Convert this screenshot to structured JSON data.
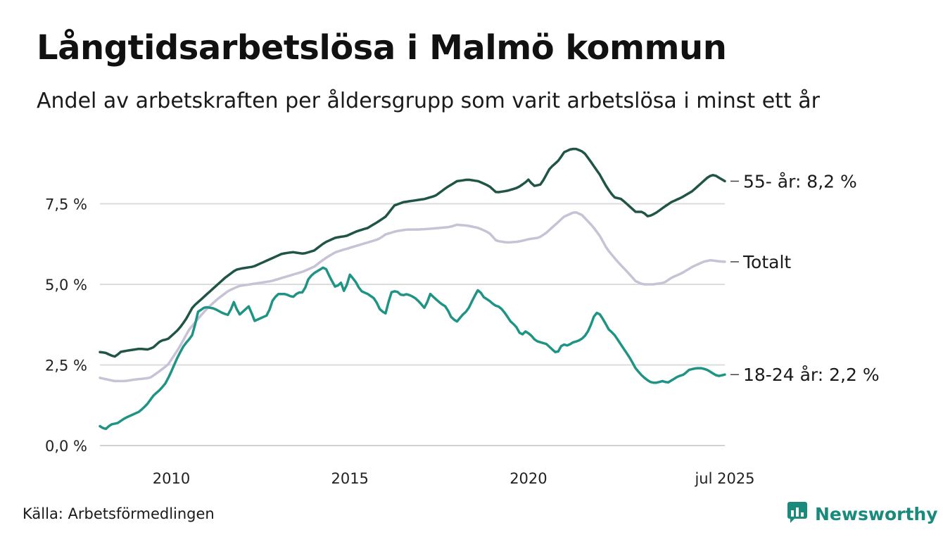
{
  "title": "Långtidsarbetslösa i Malmö kommun",
  "subtitle": "Andel av arbetskraften per åldersgrupp som varit arbetslösa i minst ett år",
  "source": "Källa: Arbetsförmedlingen",
  "brand": {
    "name": "Newsworthy",
    "icon": "newsworthy-logo-icon",
    "color": "#1a8a7d"
  },
  "chart_data": {
    "type": "line",
    "x_start": 2008.0,
    "x_step_months": 1,
    "xlim": [
      2008.0,
      2025.5
    ],
    "ylim": [
      0,
      9.3
    ],
    "y_ticks": [
      {
        "value": 0,
        "label": "0,0 %"
      },
      {
        "value": 2.5,
        "label": "2,5 %"
      },
      {
        "value": 5,
        "label": "5,0 %"
      },
      {
        "value": 7.5,
        "label": "7,5 %"
      }
    ],
    "x_ticks": [
      {
        "value": 2010,
        "label": "2010"
      },
      {
        "value": 2015,
        "label": "2015"
      },
      {
        "value": 2020,
        "label": "2020"
      },
      {
        "value": 2025.5,
        "label": "jul 2025"
      }
    ],
    "grid": true,
    "legend": "direct-labels-right",
    "series": [
      {
        "name": "55- år",
        "end_label": "55- år: 8,2 %",
        "color": "#1f5446",
        "anchors": [
          [
            2008.0,
            2.9
          ],
          [
            2008.15,
            2.88
          ],
          [
            2008.3,
            2.8
          ],
          [
            2008.45,
            2.75
          ],
          [
            2008.55,
            2.9
          ],
          [
            2008.8,
            2.95
          ],
          [
            2009.1,
            3.0
          ],
          [
            2009.35,
            2.98
          ],
          [
            2009.5,
            3.05
          ],
          [
            2009.7,
            3.25
          ],
          [
            2009.9,
            3.3
          ],
          [
            2010.2,
            3.6
          ],
          [
            2010.4,
            3.9
          ],
          [
            2010.6,
            4.3
          ],
          [
            2010.9,
            4.6
          ],
          [
            2011.2,
            4.9
          ],
          [
            2011.5,
            5.2
          ],
          [
            2011.8,
            5.45
          ],
          [
            2012.0,
            5.5
          ],
          [
            2012.3,
            5.55
          ],
          [
            2012.5,
            5.65
          ],
          [
            2012.8,
            5.8
          ],
          [
            2013.1,
            5.95
          ],
          [
            2013.4,
            6.0
          ],
          [
            2013.7,
            5.95
          ],
          [
            2014.0,
            6.05
          ],
          [
            2014.3,
            6.3
          ],
          [
            2014.6,
            6.45
          ],
          [
            2014.9,
            6.5
          ],
          [
            2015.2,
            6.65
          ],
          [
            2015.5,
            6.75
          ],
          [
            2015.8,
            6.95
          ],
          [
            2016.0,
            7.1
          ],
          [
            2016.25,
            7.45
          ],
          [
            2016.5,
            7.55
          ],
          [
            2016.8,
            7.6
          ],
          [
            2017.1,
            7.65
          ],
          [
            2017.4,
            7.75
          ],
          [
            2017.7,
            8.0
          ],
          [
            2018.0,
            8.2
          ],
          [
            2018.3,
            8.25
          ],
          [
            2018.6,
            8.2
          ],
          [
            2018.9,
            8.05
          ],
          [
            2019.1,
            7.85
          ],
          [
            2019.4,
            7.9
          ],
          [
            2019.7,
            8.0
          ],
          [
            2019.9,
            8.15
          ],
          [
            2020.0,
            8.25
          ],
          [
            2020.15,
            8.05
          ],
          [
            2020.35,
            8.1
          ],
          [
            2020.6,
            8.6
          ],
          [
            2020.85,
            8.85
          ],
          [
            2021.0,
            9.1
          ],
          [
            2021.2,
            9.2
          ],
          [
            2021.35,
            9.2
          ],
          [
            2021.55,
            9.1
          ],
          [
            2021.75,
            8.8
          ],
          [
            2022.0,
            8.4
          ],
          [
            2022.2,
            8.0
          ],
          [
            2022.4,
            7.7
          ],
          [
            2022.6,
            7.65
          ],
          [
            2022.85,
            7.4
          ],
          [
            2023.0,
            7.25
          ],
          [
            2023.2,
            7.25
          ],
          [
            2023.35,
            7.1
          ],
          [
            2023.55,
            7.2
          ],
          [
            2023.8,
            7.4
          ],
          [
            2024.0,
            7.55
          ],
          [
            2024.3,
            7.7
          ],
          [
            2024.6,
            7.9
          ],
          [
            2024.85,
            8.15
          ],
          [
            2025.05,
            8.35
          ],
          [
            2025.2,
            8.4
          ],
          [
            2025.35,
            8.3
          ],
          [
            2025.5,
            8.2
          ]
        ],
        "last_value": 8.2
      },
      {
        "name": "Totalt",
        "end_label": "Totalt",
        "color": "#c7c2d6",
        "anchors": [
          [
            2008.0,
            2.1
          ],
          [
            2008.2,
            2.05
          ],
          [
            2008.4,
            2.0
          ],
          [
            2008.7,
            2.0
          ],
          [
            2009.0,
            2.05
          ],
          [
            2009.4,
            2.1
          ],
          [
            2009.6,
            2.25
          ],
          [
            2009.9,
            2.5
          ],
          [
            2010.2,
            3.0
          ],
          [
            2010.5,
            3.6
          ],
          [
            2010.8,
            4.0
          ],
          [
            2011.0,
            4.25
          ],
          [
            2011.3,
            4.55
          ],
          [
            2011.6,
            4.8
          ],
          [
            2011.9,
            4.95
          ],
          [
            2012.2,
            5.0
          ],
          [
            2012.5,
            5.05
          ],
          [
            2012.8,
            5.1
          ],
          [
            2013.1,
            5.2
          ],
          [
            2013.4,
            5.3
          ],
          [
            2013.7,
            5.4
          ],
          [
            2014.0,
            5.55
          ],
          [
            2014.3,
            5.8
          ],
          [
            2014.6,
            6.0
          ],
          [
            2014.9,
            6.1
          ],
          [
            2015.2,
            6.2
          ],
          [
            2015.5,
            6.3
          ],
          [
            2015.8,
            6.4
          ],
          [
            2016.0,
            6.55
          ],
          [
            2016.3,
            6.65
          ],
          [
            2016.6,
            6.7
          ],
          [
            2016.9,
            6.7
          ],
          [
            2017.2,
            6.72
          ],
          [
            2017.5,
            6.75
          ],
          [
            2017.8,
            6.78
          ],
          [
            2018.0,
            6.85
          ],
          [
            2018.3,
            6.82
          ],
          [
            2018.6,
            6.75
          ],
          [
            2018.9,
            6.6
          ],
          [
            2019.1,
            6.35
          ],
          [
            2019.4,
            6.3
          ],
          [
            2019.7,
            6.32
          ],
          [
            2020.0,
            6.4
          ],
          [
            2020.3,
            6.45
          ],
          [
            2020.5,
            6.6
          ],
          [
            2020.8,
            6.9
          ],
          [
            2021.0,
            7.1
          ],
          [
            2021.3,
            7.25
          ],
          [
            2021.5,
            7.15
          ],
          [
            2021.8,
            6.8
          ],
          [
            2022.0,
            6.5
          ],
          [
            2022.2,
            6.1
          ],
          [
            2022.5,
            5.7
          ],
          [
            2022.8,
            5.35
          ],
          [
            2023.0,
            5.1
          ],
          [
            2023.2,
            5.0
          ],
          [
            2023.5,
            5.0
          ],
          [
            2023.8,
            5.05
          ],
          [
            2024.0,
            5.2
          ],
          [
            2024.3,
            5.35
          ],
          [
            2024.6,
            5.55
          ],
          [
            2024.9,
            5.7
          ],
          [
            2025.1,
            5.75
          ],
          [
            2025.3,
            5.72
          ],
          [
            2025.5,
            5.7
          ]
        ],
        "last_value": 5.7
      },
      {
        "name": "18-24 år",
        "end_label": "18-24 år: 2,2 %",
        "color": "#1f9484",
        "anchors": [
          [
            2008.0,
            0.6
          ],
          [
            2008.15,
            0.5
          ],
          [
            2008.3,
            0.65
          ],
          [
            2008.5,
            0.7
          ],
          [
            2008.7,
            0.85
          ],
          [
            2008.9,
            0.95
          ],
          [
            2009.1,
            1.05
          ],
          [
            2009.3,
            1.25
          ],
          [
            2009.5,
            1.55
          ],
          [
            2009.7,
            1.75
          ],
          [
            2009.85,
            1.95
          ],
          [
            2010.0,
            2.3
          ],
          [
            2010.2,
            2.8
          ],
          [
            2010.35,
            3.1
          ],
          [
            2010.5,
            3.3
          ],
          [
            2010.6,
            3.45
          ],
          [
            2010.75,
            4.15
          ],
          [
            2010.95,
            4.3
          ],
          [
            2011.2,
            4.25
          ],
          [
            2011.45,
            4.1
          ],
          [
            2011.6,
            4.05
          ],
          [
            2011.75,
            4.45
          ],
          [
            2011.9,
            4.05
          ],
          [
            2012.05,
            4.2
          ],
          [
            2012.2,
            4.35
          ],
          [
            2012.3,
            3.85
          ],
          [
            2012.5,
            3.95
          ],
          [
            2012.7,
            4.05
          ],
          [
            2012.85,
            4.55
          ],
          [
            2013.0,
            4.7
          ],
          [
            2013.2,
            4.7
          ],
          [
            2013.4,
            4.6
          ],
          [
            2013.55,
            4.75
          ],
          [
            2013.7,
            4.75
          ],
          [
            2013.85,
            5.2
          ],
          [
            2014.0,
            5.35
          ],
          [
            2014.15,
            5.45
          ],
          [
            2014.3,
            5.55
          ],
          [
            2014.45,
            5.2
          ],
          [
            2014.6,
            4.9
          ],
          [
            2014.75,
            5.05
          ],
          [
            2014.85,
            4.75
          ],
          [
            2015.0,
            5.3
          ],
          [
            2015.15,
            5.1
          ],
          [
            2015.3,
            4.8
          ],
          [
            2015.5,
            4.7
          ],
          [
            2015.7,
            4.55
          ],
          [
            2015.85,
            4.2
          ],
          [
            2016.0,
            4.1
          ],
          [
            2016.15,
            4.75
          ],
          [
            2016.3,
            4.8
          ],
          [
            2016.45,
            4.65
          ],
          [
            2016.6,
            4.7
          ],
          [
            2016.8,
            4.6
          ],
          [
            2016.95,
            4.45
          ],
          [
            2017.1,
            4.25
          ],
          [
            2017.25,
            4.7
          ],
          [
            2017.4,
            4.55
          ],
          [
            2017.55,
            4.4
          ],
          [
            2017.7,
            4.3
          ],
          [
            2017.85,
            3.95
          ],
          [
            2018.0,
            3.85
          ],
          [
            2018.15,
            4.05
          ],
          [
            2018.3,
            4.2
          ],
          [
            2018.45,
            4.55
          ],
          [
            2018.6,
            4.85
          ],
          [
            2018.75,
            4.6
          ],
          [
            2018.9,
            4.5
          ],
          [
            2019.05,
            4.35
          ],
          [
            2019.2,
            4.3
          ],
          [
            2019.35,
            4.1
          ],
          [
            2019.5,
            3.85
          ],
          [
            2019.65,
            3.7
          ],
          [
            2019.8,
            3.4
          ],
          [
            2019.9,
            3.55
          ],
          [
            2020.05,
            3.45
          ],
          [
            2020.2,
            3.25
          ],
          [
            2020.35,
            3.2
          ],
          [
            2020.5,
            3.15
          ],
          [
            2020.65,
            3.0
          ],
          [
            2020.8,
            2.85
          ],
          [
            2020.95,
            3.15
          ],
          [
            2021.1,
            3.1
          ],
          [
            2021.25,
            3.2
          ],
          [
            2021.4,
            3.25
          ],
          [
            2021.55,
            3.35
          ],
          [
            2021.7,
            3.6
          ],
          [
            2021.85,
            4.05
          ],
          [
            2021.95,
            4.15
          ],
          [
            2022.1,
            3.9
          ],
          [
            2022.25,
            3.6
          ],
          [
            2022.4,
            3.45
          ],
          [
            2022.55,
            3.2
          ],
          [
            2022.7,
            2.95
          ],
          [
            2022.85,
            2.7
          ],
          [
            2023.0,
            2.4
          ],
          [
            2023.15,
            2.2
          ],
          [
            2023.3,
            2.05
          ],
          [
            2023.45,
            1.95
          ],
          [
            2023.6,
            1.95
          ],
          [
            2023.75,
            2.0
          ],
          [
            2023.9,
            1.95
          ],
          [
            2024.05,
            2.05
          ],
          [
            2024.2,
            2.15
          ],
          [
            2024.35,
            2.2
          ],
          [
            2024.5,
            2.35
          ],
          [
            2024.7,
            2.4
          ],
          [
            2024.85,
            2.4
          ],
          [
            2025.0,
            2.35
          ],
          [
            2025.15,
            2.25
          ],
          [
            2025.3,
            2.15
          ],
          [
            2025.5,
            2.2
          ]
        ],
        "last_value": 2.2
      }
    ]
  }
}
